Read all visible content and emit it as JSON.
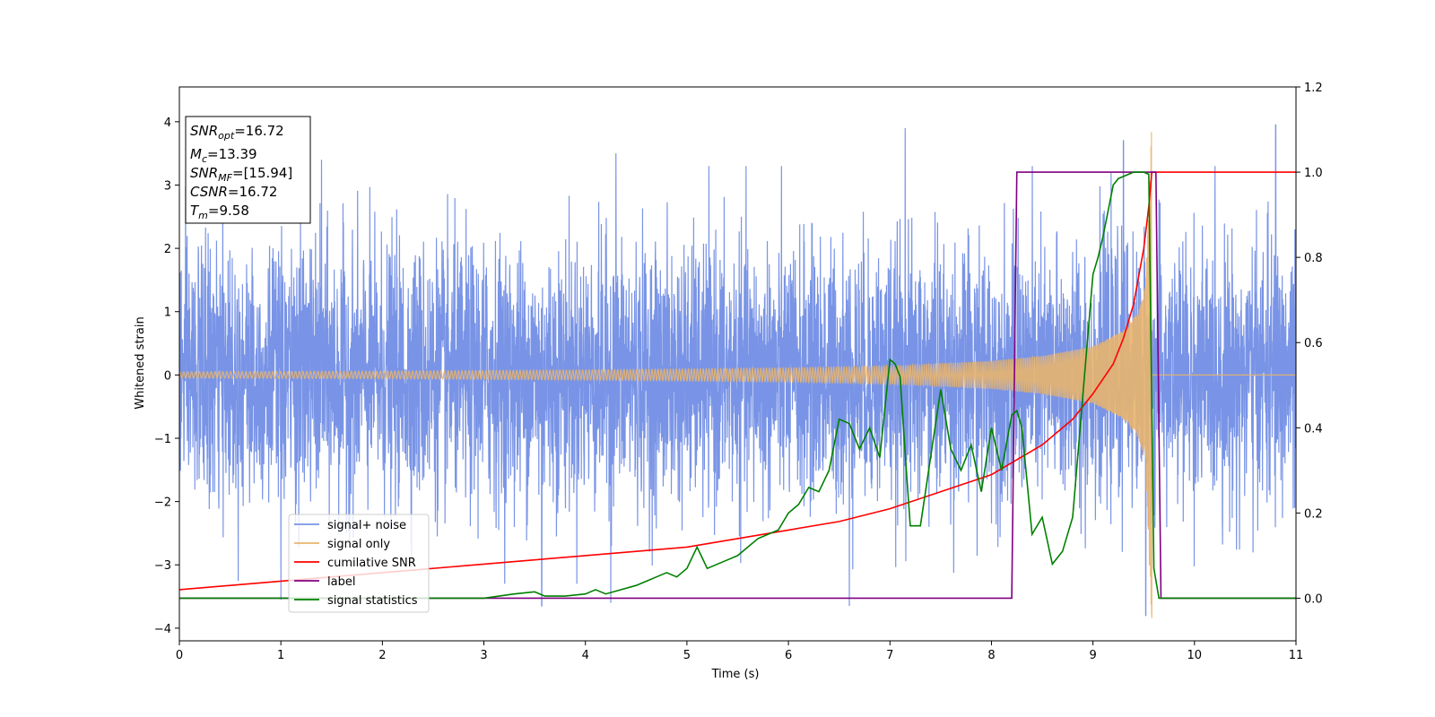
{
  "chart_data": {
    "type": "line",
    "xlabel": "Time (s)",
    "ylabel": "Whitened strain",
    "xlim": [
      0,
      11
    ],
    "ylim": [
      -4.2,
      4.55
    ],
    "y2lim": [
      -0.1,
      1.2
    ],
    "xticks": [
      "0",
      "1",
      "2",
      "3",
      "4",
      "5",
      "6",
      "7",
      "8",
      "9",
      "10",
      "11"
    ],
    "yticks": [
      "−4",
      "−3",
      "−2",
      "−1",
      "0",
      "1",
      "2",
      "3",
      "4"
    ],
    "y2ticks": [
      "0.0",
      "0.2",
      "0.4",
      "0.6",
      "0.8",
      "1.0",
      "1.2"
    ],
    "legend_position": "lower-left",
    "annotation": [
      {
        "name": "SNR",
        "sub": "opt",
        "value": "=16.72"
      },
      {
        "name": "M",
        "sub": "c",
        "value": "=13.39"
      },
      {
        "name": "SNR",
        "sub": "MF",
        "value": "=[15.94]"
      },
      {
        "name": "CSNR",
        "sub": "",
        "value": "=16.72"
      },
      {
        "name": "T",
        "sub": "m",
        "value": "=9.58"
      }
    ],
    "series": [
      {
        "name": "signal+ noise",
        "color": "#7994e6",
        "axis": "left",
        "description_values": {
          "mean": 0,
          "std": 1.0,
          "min": -3.8,
          "max": 3.95
        },
        "spikes": [
          [
            1.4,
            3.4
          ],
          [
            4.3,
            3.5
          ],
          [
            7.15,
            3.9
          ],
          [
            9.3,
            3.7
          ],
          [
            10.8,
            3.95
          ],
          [
            9.52,
            -3.8
          ],
          [
            3.57,
            -3.65
          ],
          [
            6.6,
            -3.65
          ],
          [
            4.25,
            -3.6
          ],
          [
            1.0,
            -3.55
          ]
        ]
      },
      {
        "name": "signal only",
        "color": "#e8b46e",
        "axis": "left",
        "merger_time": 9.58,
        "envelope": [
          [
            0,
            0.05
          ],
          [
            2,
            0.06
          ],
          [
            4,
            0.08
          ],
          [
            6,
            0.11
          ],
          [
            7,
            0.14
          ],
          [
            8,
            0.22
          ],
          [
            8.5,
            0.3
          ],
          [
            9,
            0.45
          ],
          [
            9.3,
            0.7
          ],
          [
            9.45,
            1.0
          ],
          [
            9.55,
            1.6
          ]
        ]
      },
      {
        "name": "cumilative SNR",
        "color": "#ff0000",
        "axis": "right",
        "x": [
          0,
          1,
          2,
          3,
          4,
          5,
          5.5,
          6,
          6.5,
          7,
          7.5,
          8,
          8.5,
          8.8,
          9,
          9.2,
          9.3,
          9.4,
          9.5,
          9.55,
          9.58,
          11
        ],
        "y": [
          0.02,
          0.04,
          0.06,
          0.08,
          0.1,
          0.12,
          0.14,
          0.16,
          0.18,
          0.21,
          0.25,
          0.29,
          0.36,
          0.42,
          0.48,
          0.55,
          0.61,
          0.69,
          0.82,
          0.92,
          1.0,
          1.0
        ]
      },
      {
        "name": "label",
        "color": "#800080",
        "axis": "right",
        "x": [
          0,
          8.2,
          8.25,
          9.62,
          9.67,
          11
        ],
        "y": [
          0,
          0,
          1,
          1,
          0,
          0
        ]
      },
      {
        "name": "signal statistics",
        "color": "#008000",
        "axis": "right",
        "x": [
          0,
          0.5,
          1,
          1.5,
          2,
          2.5,
          3,
          3.3,
          3.5,
          3.6,
          3.8,
          4.0,
          4.1,
          4.2,
          4.5,
          4.6,
          4.7,
          4.8,
          4.9,
          5.0,
          5.1,
          5.2,
          5.3,
          5.4,
          5.5,
          5.6,
          5.7,
          5.8,
          5.9,
          6.0,
          6.1,
          6.2,
          6.3,
          6.4,
          6.5,
          6.6,
          6.7,
          6.8,
          6.9,
          7.0,
          7.05,
          7.1,
          7.15,
          7.2,
          7.3,
          7.4,
          7.5,
          7.6,
          7.7,
          7.8,
          7.9,
          8.0,
          8.1,
          8.2,
          8.25,
          8.3,
          8.4,
          8.5,
          8.6,
          8.7,
          8.8,
          9.0,
          9.05,
          9.1,
          9.2,
          9.25,
          9.3,
          9.4,
          9.5,
          9.55,
          9.6,
          9.65,
          11
        ],
        "y": [
          0.0,
          0.0,
          0.0,
          0.0,
          0.0,
          0.0,
          0.0,
          0.01,
          0.015,
          0.005,
          0.005,
          0.01,
          0.02,
          0.01,
          0.03,
          0.04,
          0.05,
          0.06,
          0.05,
          0.07,
          0.12,
          0.07,
          0.08,
          0.09,
          0.1,
          0.12,
          0.14,
          0.15,
          0.16,
          0.2,
          0.22,
          0.26,
          0.25,
          0.3,
          0.42,
          0.41,
          0.35,
          0.4,
          0.33,
          0.56,
          0.55,
          0.52,
          0.34,
          0.17,
          0.17,
          0.33,
          0.49,
          0.35,
          0.3,
          0.36,
          0.25,
          0.4,
          0.3,
          0.43,
          0.44,
          0.4,
          0.15,
          0.19,
          0.08,
          0.11,
          0.19,
          0.76,
          0.8,
          0.85,
          0.97,
          0.985,
          0.99,
          1.0,
          1.0,
          0.995,
          0.07,
          0.0,
          0.0
        ]
      }
    ]
  }
}
